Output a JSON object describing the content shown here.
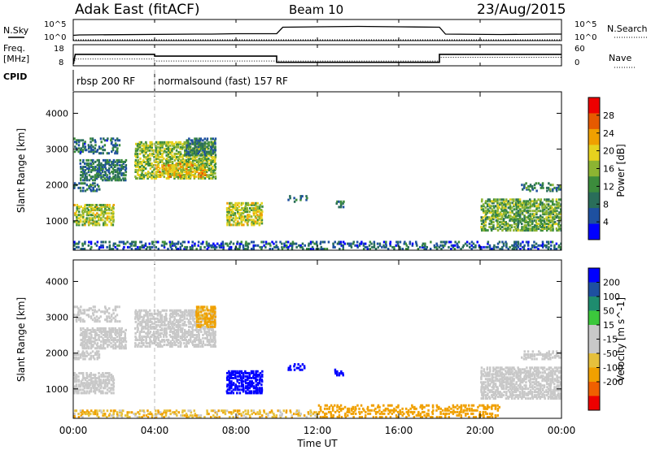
{
  "header": {
    "title": "Adak East (fitACF)",
    "beam": "Beam 10",
    "date": "23/Aug/2015"
  },
  "top_panels": {
    "nsky_label": "N.Sky",
    "nsearch_label": "N.Search",
    "freq_label_1": "Freq.",
    "freq_label_2": "[MHz]",
    "nave_label": "Nave",
    "cpid_label": "CPID",
    "nsky_ticks": [
      "10^5",
      "10^0"
    ],
    "nsearch_ticks": [
      "10^5",
      "10^0"
    ],
    "freq_ticks": [
      "18",
      "8"
    ],
    "nave_ticks": [
      "60",
      "0"
    ]
  },
  "cpid_segments": [
    {
      "start": 0,
      "end": 4,
      "label": "rbsp 200 RF"
    },
    {
      "start": 4,
      "end": 24,
      "label": "normalsound (fast) 157 RF"
    }
  ],
  "x_axis": {
    "label": "Time UT",
    "range": [
      0,
      24
    ],
    "ticks": [
      {
        "v": 0,
        "label": "00:00"
      },
      {
        "v": 4,
        "label": "04:00"
      },
      {
        "v": 8,
        "label": "08:00"
      },
      {
        "v": 12,
        "label": "12:00"
      },
      {
        "v": 16,
        "label": "16:00"
      },
      {
        "v": 20,
        "label": "20:00"
      },
      {
        "v": 24,
        "label": "00:00"
      }
    ]
  },
  "chart_data": [
    {
      "type": "line",
      "xlabel": "",
      "ylabel": "N.Sky",
      "xlim": [
        0,
        24
      ],
      "series": [
        {
          "name": "N.Sky",
          "x": [
            0,
            0.3,
            6,
            6.8,
            8,
            10,
            10.3,
            12,
            14,
            16,
            18,
            18.3,
            21,
            23.5,
            24
          ],
          "y": [
            1.3,
            1.4,
            1.6,
            1.6,
            1.7,
            1.7,
            3.3,
            3.4,
            3.5,
            3.4,
            3.3,
            1.6,
            1.5,
            1.6,
            1.6
          ]
        },
        {
          "name": "N.Search",
          "x": [
            0,
            24
          ],
          "y": [
            0.2,
            0.2
          ]
        }
      ]
    },
    {
      "type": "line",
      "ylabel": "Freq. [MHz]",
      "xlim": [
        0,
        24
      ],
      "series": [
        {
          "name": "Freq.",
          "x": [
            0,
            0.1,
            4,
            4,
            10,
            10,
            18,
            18,
            24
          ],
          "y": [
            8,
            13.5,
            13.5,
            12.5,
            12.5,
            9,
            9,
            13.5,
            13.5
          ]
        },
        {
          "name": "Nave",
          "x": [
            0,
            0.1,
            4,
            4,
            10,
            10,
            18,
            18,
            24
          ],
          "y": [
            0,
            20,
            20,
            14,
            14,
            14,
            14,
            25,
            25
          ]
        }
      ]
    },
    {
      "type": "heatmap",
      "quantity": "Power",
      "xlabel": "",
      "ylabel": "Slant Range [km]",
      "xlim": [
        0,
        24
      ],
      "ylim": [
        180,
        4600
      ],
      "yticks": [
        1000,
        2000,
        3000,
        4000
      ],
      "colorbar": {
        "label": "Power [dB]",
        "range": [
          0,
          32
        ],
        "ticks": [
          4,
          8,
          12,
          16,
          20,
          24,
          28
        ],
        "colors": [
          "#0000ff",
          "#1e50a0",
          "#2a6e5a",
          "#3c8c3c",
          "#8cb432",
          "#e6d21e",
          "#f0a000",
          "#e65a00",
          "#ee0000"
        ]
      },
      "regions": [
        {
          "x0": 0.0,
          "x1": 2.3,
          "r0": 2850,
          "r1": 3300,
          "level": 8
        },
        {
          "x0": 0.3,
          "x1": 2.6,
          "r0": 2100,
          "r1": 2700,
          "level": 9
        },
        {
          "x0": 0.0,
          "x1": 1.3,
          "r0": 1800,
          "r1": 2050,
          "level": 10
        },
        {
          "x0": 0.0,
          "x1": 2.0,
          "r0": 850,
          "r1": 1450,
          "level": 17
        },
        {
          "x0": 3.0,
          "x1": 7.0,
          "r0": 2150,
          "r1": 3200,
          "level": 16
        },
        {
          "x0": 4.0,
          "x1": 6.5,
          "r0": 2200,
          "r1": 2600,
          "level": 21
        },
        {
          "x0": 5.5,
          "x1": 7.0,
          "r0": 2800,
          "r1": 3300,
          "level": 9
        },
        {
          "x0": 7.5,
          "x1": 9.3,
          "r0": 850,
          "r1": 1500,
          "level": 18
        },
        {
          "x0": 10.5,
          "x1": 11.5,
          "r0": 1500,
          "r1": 1700,
          "level": 7
        },
        {
          "x0": 12.8,
          "x1": 13.3,
          "r0": 1350,
          "r1": 1550,
          "level": 9
        },
        {
          "x0": 20.0,
          "x1": 24.0,
          "r0": 700,
          "r1": 1600,
          "level": 14
        },
        {
          "x0": 22.0,
          "x1": 24.0,
          "r0": 1800,
          "r1": 2050,
          "level": 10
        },
        {
          "x0": 0.0,
          "x1": 24.0,
          "r0": 180,
          "r1": 420,
          "level": 7
        }
      ]
    },
    {
      "type": "heatmap",
      "quantity": "Velocity",
      "xlabel": "Time UT",
      "ylabel": "Slant Range [km]",
      "xlim": [
        0,
        24
      ],
      "ylim": [
        180,
        4600
      ],
      "yticks": [
        1000,
        2000,
        3000,
        4000
      ],
      "colorbar": {
        "label": "Velocity [m s^-1]",
        "range": [
          -250,
          250
        ],
        "ticks": [
          200,
          100,
          50,
          15,
          -15,
          -50,
          -100,
          -200
        ],
        "colors": [
          "#ee0000",
          "#f06000",
          "#f0a000",
          "#e6c03c",
          "#c8c8c8",
          "#c8c8c8",
          "#3cc83c",
          "#1e8c6e",
          "#1e50a0",
          "#0000ff"
        ]
      },
      "regions": [
        {
          "x0": 0.0,
          "x1": 2.3,
          "r0": 2850,
          "r1": 3300,
          "level": 0
        },
        {
          "x0": 0.3,
          "x1": 2.6,
          "r0": 2100,
          "r1": 2700,
          "level": 0
        },
        {
          "x0": 0.0,
          "x1": 1.3,
          "r0": 1800,
          "r1": 2050,
          "level": 0
        },
        {
          "x0": 0.0,
          "x1": 2.0,
          "r0": 850,
          "r1": 1450,
          "level": 0
        },
        {
          "x0": 3.0,
          "x1": 7.0,
          "r0": 2150,
          "r1": 3200,
          "level": 0
        },
        {
          "x0": 6.0,
          "x1": 7.0,
          "r0": 2700,
          "r1": 3300,
          "level": -40
        },
        {
          "x0": 7.5,
          "x1": 9.3,
          "r0": 850,
          "r1": 1500,
          "level": 220
        },
        {
          "x0": 10.5,
          "x1": 11.5,
          "r0": 1500,
          "r1": 1700,
          "level": 220
        },
        {
          "x0": 12.8,
          "x1": 13.3,
          "r0": 1350,
          "r1": 1550,
          "level": 220
        },
        {
          "x0": 20.0,
          "x1": 24.0,
          "r0": 700,
          "r1": 1600,
          "level": 0
        },
        {
          "x0": 22.0,
          "x1": 24.0,
          "r0": 1800,
          "r1": 2050,
          "level": 0
        },
        {
          "x0": 12.0,
          "x1": 21.0,
          "r0": 180,
          "r1": 550,
          "level": -50
        },
        {
          "x0": 0.0,
          "x1": 12.0,
          "r0": 180,
          "r1": 400,
          "level": -25
        }
      ]
    }
  ]
}
